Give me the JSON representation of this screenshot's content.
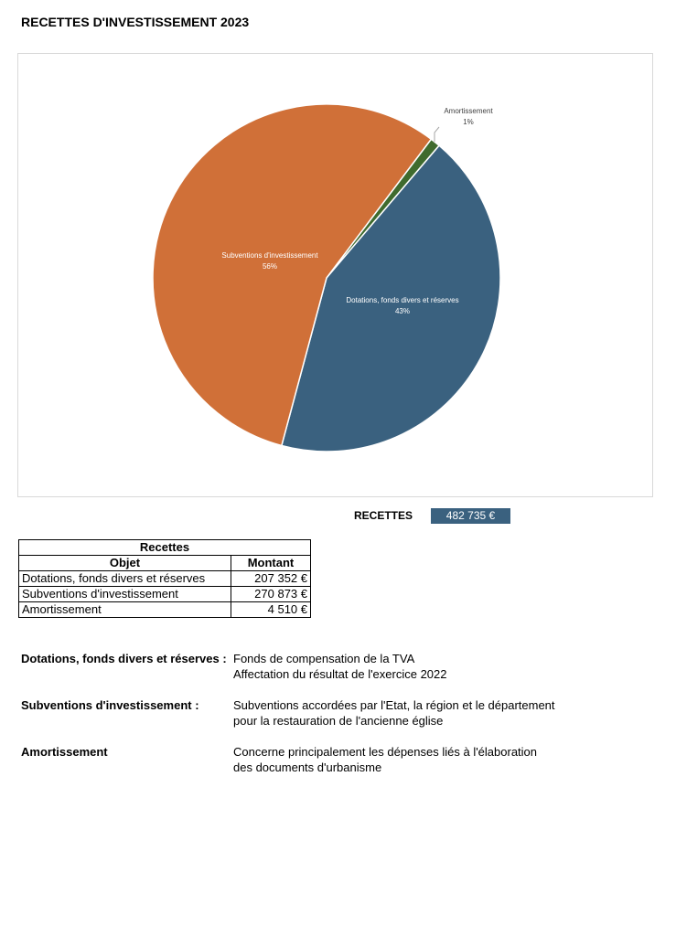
{
  "title": "RECETTES D'INVESTISSEMENT 2023",
  "chart_data": {
    "type": "pie",
    "start_angle_deg": 37,
    "slices": [
      {
        "name": "Amortissement",
        "percent_label": "1%",
        "value": 4510,
        "color": "#3F6B2E"
      },
      {
        "name": "Dotations, fonds divers et réserves",
        "percent_label": "43%",
        "value": 207352,
        "color": "#3A617F"
      },
      {
        "name": "Subventions d'investissement",
        "percent_label": "56%",
        "value": 270873,
        "color": "#D07038"
      }
    ]
  },
  "total": {
    "label": "RECETTES",
    "value": "482 735 €"
  },
  "table": {
    "title": "Recettes",
    "headers": [
      "Objet",
      "Montant"
    ],
    "rows": [
      [
        "Dotations, fonds divers et réserves",
        "207 352 €"
      ],
      [
        "Subventions d'investissement",
        "270 873 €"
      ],
      [
        "Amortissement",
        "4 510 €"
      ]
    ]
  },
  "notes": [
    {
      "key": "Dotations, fonds divers et réserves :",
      "lines": [
        "Fonds de compensation de la TVA",
        "Affectation du résultat de l'exercice 2022"
      ]
    },
    {
      "key": "Subventions d'investissement :",
      "lines": [
        "Subventions accordées par l'Etat, la région et le département",
        "pour la restauration de l'ancienne église"
      ]
    },
    {
      "key": "Amortissement",
      "lines": [
        "Concerne principalement les dépenses liés à l'élaboration",
        "des documents d'urbanisme"
      ]
    }
  ]
}
